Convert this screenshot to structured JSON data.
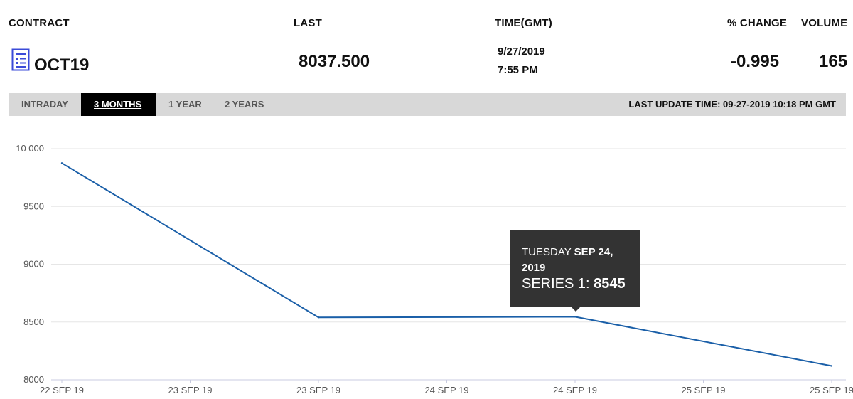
{
  "header": {
    "contract_label": "CONTRACT",
    "last_label": "LAST",
    "time_label": "TIME(GMT)",
    "change_label": "% CHANGE",
    "volume_label": "VOLUME"
  },
  "row": {
    "contract": "OCT19",
    "last": "8037.500",
    "date": "9/27/2019",
    "time": "7:55 PM",
    "change": "-0.995",
    "volume": "165"
  },
  "tabs": {
    "intraday": "INTRADAY",
    "three_months": "3 MONTHS",
    "one_year": "1 YEAR",
    "two_years": "2 YEARS",
    "last_update": "LAST UPDATE TIME: 09-27-2019 10:18 PM GMT"
  },
  "tooltip": {
    "day": "TUESDAY",
    "date": "SEP 24, 2019",
    "series_label": "SERIES 1:",
    "series_value": "8545"
  },
  "icons": {
    "contract": "document-list-icon"
  },
  "colors": {
    "line": "#1a5fa8",
    "tooltip_bg": "#333333",
    "tab_active_bg": "#000000"
  },
  "chart_data": {
    "type": "line",
    "x_tick_labels": [
      "22 SEP 19",
      "23 SEP 19",
      "23 SEP 19",
      "24 SEP 19",
      "24 SEP 19",
      "25 SEP 19",
      "25 SEP 19"
    ],
    "y_ticks": [
      10000,
      9500,
      9000,
      8500,
      8000
    ],
    "y_tick_labels": [
      "10 000",
      "9500",
      "9000",
      "8500",
      "8000"
    ],
    "ylim": [
      8000,
      10000
    ],
    "grid": true,
    "series": [
      {
        "x": [
          0,
          2,
          4,
          6
        ],
        "values": [
          9875,
          8540,
          8545,
          8120
        ]
      }
    ]
  }
}
